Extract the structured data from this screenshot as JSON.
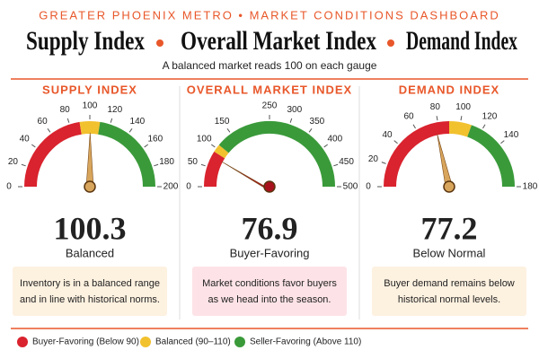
{
  "header": {
    "kicker": "GREATER PHOENIX METRO • MARKET CONDITIONS DASHBOARD",
    "headline": [
      "Supply Index",
      "Overall Market Index",
      "Demand Index"
    ],
    "subtitle": "A balanced market reads 100 on each gauge"
  },
  "chart_data": [
    {
      "type": "gauge",
      "title": "SUPPLY INDEX",
      "value": 100.3,
      "status": "Balanced",
      "description": [
        "Inventory is in a balanced range",
        "and in line with historical norms."
      ],
      "xlim": [
        0,
        200
      ],
      "xticks": [
        0,
        20,
        40,
        60,
        80,
        100,
        120,
        140,
        160,
        180,
        200
      ],
      "zones": [
        {
          "from": 0,
          "to": 90,
          "color": "#d9232e"
        },
        {
          "from": 90,
          "to": 110,
          "color": "#f2c12e"
        },
        {
          "from": 110,
          "to": 200,
          "color": "#3a9a3a"
        }
      ],
      "needle_color": "#d8a55c",
      "box_color": "#fdf1e0"
    },
    {
      "type": "gauge",
      "title": "OVERALL MARKET INDEX",
      "value": 76.9,
      "status": "Buyer-Favoring",
      "description": [
        "Market conditions favor buyers",
        "as we head into the season."
      ],
      "xlim": [
        0,
        500
      ],
      "xticks": [
        0,
        50,
        100,
        150,
        250,
        300,
        350,
        400,
        450,
        500
      ],
      "zones": [
        {
          "from": 0,
          "to": 90,
          "color": "#d9232e"
        },
        {
          "from": 90,
          "to": 110,
          "color": "#f2c12e"
        },
        {
          "from": 110,
          "to": 500,
          "color": "#3a9a3a"
        }
      ],
      "needle_color": "#a8121c",
      "box_color": "#fde3e7"
    },
    {
      "type": "gauge",
      "title": "DEMAND INDEX",
      "value": 77.2,
      "status": "Below Normal",
      "description": [
        "Buyer demand remains below",
        "historical normal levels."
      ],
      "xlim": [
        0,
        180
      ],
      "xticks": [
        0,
        20,
        40,
        60,
        80,
        100,
        120,
        140,
        180
      ],
      "zones": [
        {
          "from": 0,
          "to": 90,
          "color": "#d9232e"
        },
        {
          "from": 90,
          "to": 110,
          "color": "#f2c12e"
        },
        {
          "from": 110,
          "to": 180,
          "color": "#3a9a3a"
        }
      ],
      "needle_color": "#d8a55c",
      "box_color": "#fdf1e0"
    }
  ],
  "legend": [
    {
      "label": "Buyer-Favoring (Below 90)",
      "color": "#d9232e"
    },
    {
      "label": "Balanced (90–110)",
      "color": "#f2c12e"
    },
    {
      "label": "Seller-Favoring (Above 110)",
      "color": "#3a9a3a"
    }
  ]
}
